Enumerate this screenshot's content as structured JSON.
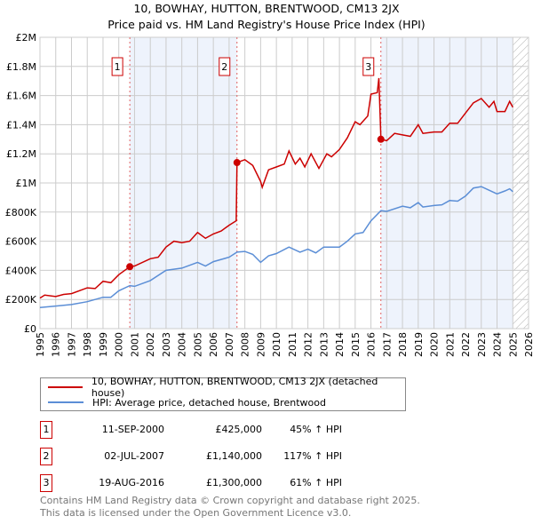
{
  "chart_data": {
    "type": "line",
    "title": "10, BOWHAY, HUTTON, BRENTWOOD, CM13 2JX",
    "subtitle": "Price paid vs. HM Land Registry's House Price Index (HPI)",
    "xlim": [
      1995,
      2026
    ],
    "ylim": [
      0,
      2000000
    ],
    "x_ticks": [
      "1995",
      "1996",
      "1997",
      "1998",
      "1999",
      "2000",
      "2001",
      "2002",
      "2003",
      "2004",
      "2005",
      "2006",
      "2007",
      "2008",
      "2009",
      "2010",
      "2011",
      "2012",
      "2013",
      "2014",
      "2015",
      "2016",
      "2017",
      "2018",
      "2019",
      "2020",
      "2021",
      "2022",
      "2023",
      "2024",
      "2025",
      "2026"
    ],
    "y_ticks": [
      {
        "v": 0,
        "label": "£0"
      },
      {
        "v": 200000,
        "label": "£200K"
      },
      {
        "v": 400000,
        "label": "£400K"
      },
      {
        "v": 600000,
        "label": "£600K"
      },
      {
        "v": 800000,
        "label": "£800K"
      },
      {
        "v": 1000000,
        "label": "£1M"
      },
      {
        "v": 1200000,
        "label": "£1.2M"
      },
      {
        "v": 1400000,
        "label": "£1.4M"
      },
      {
        "v": 1600000,
        "label": "£1.6M"
      },
      {
        "v": 1800000,
        "label": "£1.8M"
      },
      {
        "v": 2000000,
        "label": "£2M"
      }
    ],
    "grid": true,
    "shaded_ranges": [
      [
        2000.7,
        2007.5
      ],
      [
        2016.63,
        2025.0
      ]
    ],
    "hatched_from": 2025.0,
    "series": [
      {
        "name": "10, BOWHAY, HUTTON, BRENTWOOD, CM13 2JX (detached house)",
        "color": "#cc0000",
        "x": [
          1995,
          1995.3,
          1996,
          1996.5,
          1997,
          1998,
          1998.5,
          1999,
          1999.5,
          2000,
          2000.7,
          2001,
          2002,
          2002.5,
          2003,
          2003.5,
          2004,
          2004.5,
          2005,
          2005.5,
          2006,
          2006.5,
          2007,
          2007.45,
          2007.5,
          2008,
          2008.5,
          2009,
          2009.1,
          2009.5,
          2010,
          2010.5,
          2010.8,
          2011.2,
          2011.5,
          2011.8,
          2012.2,
          2012.7,
          2013.2,
          2013.5,
          2014,
          2014.5,
          2015,
          2015.3,
          2015.8,
          2016,
          2016.4,
          2016.5,
          2016.63,
          2017,
          2017.5,
          2018,
          2018.5,
          2019,
          2019.3,
          2020,
          2020.5,
          2021,
          2021.5,
          2022,
          2022.5,
          2023,
          2023.5,
          2023.8,
          2024,
          2024.5,
          2024.8,
          2025
        ],
        "y": [
          210000,
          230000,
          220000,
          235000,
          240000,
          280000,
          275000,
          325000,
          315000,
          370000,
          425000,
          430000,
          480000,
          490000,
          560000,
          600000,
          590000,
          600000,
          660000,
          620000,
          650000,
          670000,
          710000,
          740000,
          1140000,
          1160000,
          1120000,
          1010000,
          970000,
          1090000,
          1110000,
          1130000,
          1220000,
          1130000,
          1170000,
          1110000,
          1200000,
          1100000,
          1200000,
          1180000,
          1230000,
          1310000,
          1420000,
          1400000,
          1460000,
          1610000,
          1620000,
          1720000,
          1300000,
          1290000,
          1340000,
          1330000,
          1320000,
          1400000,
          1340000,
          1350000,
          1350000,
          1410000,
          1410000,
          1480000,
          1550000,
          1580000,
          1520000,
          1560000,
          1490000,
          1490000,
          1560000,
          1520000
        ]
      },
      {
        "name": "HPI: Average price, detached house, Brentwood",
        "color": "#5b8ed6",
        "x": [
          1995,
          1996,
          1997,
          1998,
          1999,
          1999.5,
          2000,
          2000.7,
          2001,
          2002,
          2003,
          2004,
          2005,
          2005.5,
          2006,
          2007,
          2007.5,
          2008,
          2008.5,
          2009,
          2009.5,
          2010,
          2010.8,
          2011.5,
          2012,
          2012.5,
          2013,
          2014,
          2014.5,
          2015,
          2015.5,
          2016,
          2016.63,
          2017,
          2018,
          2018.5,
          2019,
          2019.3,
          2020,
          2020.5,
          2021,
          2021.5,
          2022,
          2022.5,
          2023,
          2023.5,
          2024,
          2024.5,
          2024.8,
          2025
        ],
        "y": [
          145000,
          155000,
          165000,
          185000,
          215000,
          215000,
          260000,
          295000,
          290000,
          330000,
          400000,
          415000,
          455000,
          430000,
          460000,
          490000,
          525000,
          530000,
          510000,
          455000,
          500000,
          515000,
          560000,
          525000,
          545000,
          520000,
          560000,
          560000,
          600000,
          650000,
          660000,
          740000,
          810000,
          805000,
          840000,
          830000,
          865000,
          835000,
          845000,
          850000,
          880000,
          875000,
          910000,
          965000,
          975000,
          950000,
          925000,
          945000,
          960000,
          940000
        ]
      }
    ],
    "sales": [
      {
        "num": "1",
        "x": 2000.7,
        "y": 425000,
        "date": "11-SEP-2000",
        "price": "£425,000",
        "hpi": "45% ↑ HPI"
      },
      {
        "num": "2",
        "x": 2007.5,
        "y": 1140000,
        "date": "02-JUL-2007",
        "price": "£1,140,000",
        "hpi": "117% ↑ HPI"
      },
      {
        "num": "3",
        "x": 2016.63,
        "y": 1300000,
        "date": "19-AUG-2016",
        "price": "£1,300,000",
        "hpi": "61% ↑ HPI"
      }
    ]
  },
  "legend": {
    "red": "10, BOWHAY, HUTTON, BRENTWOOD, CM13 2JX (detached house)",
    "blue": "HPI: Average price, detached house, Brentwood"
  },
  "footer": {
    "line1": "Contains HM Land Registry data © Crown copyright and database right 2025.",
    "line2": "This data is licensed under the Open Government Licence v3.0."
  }
}
